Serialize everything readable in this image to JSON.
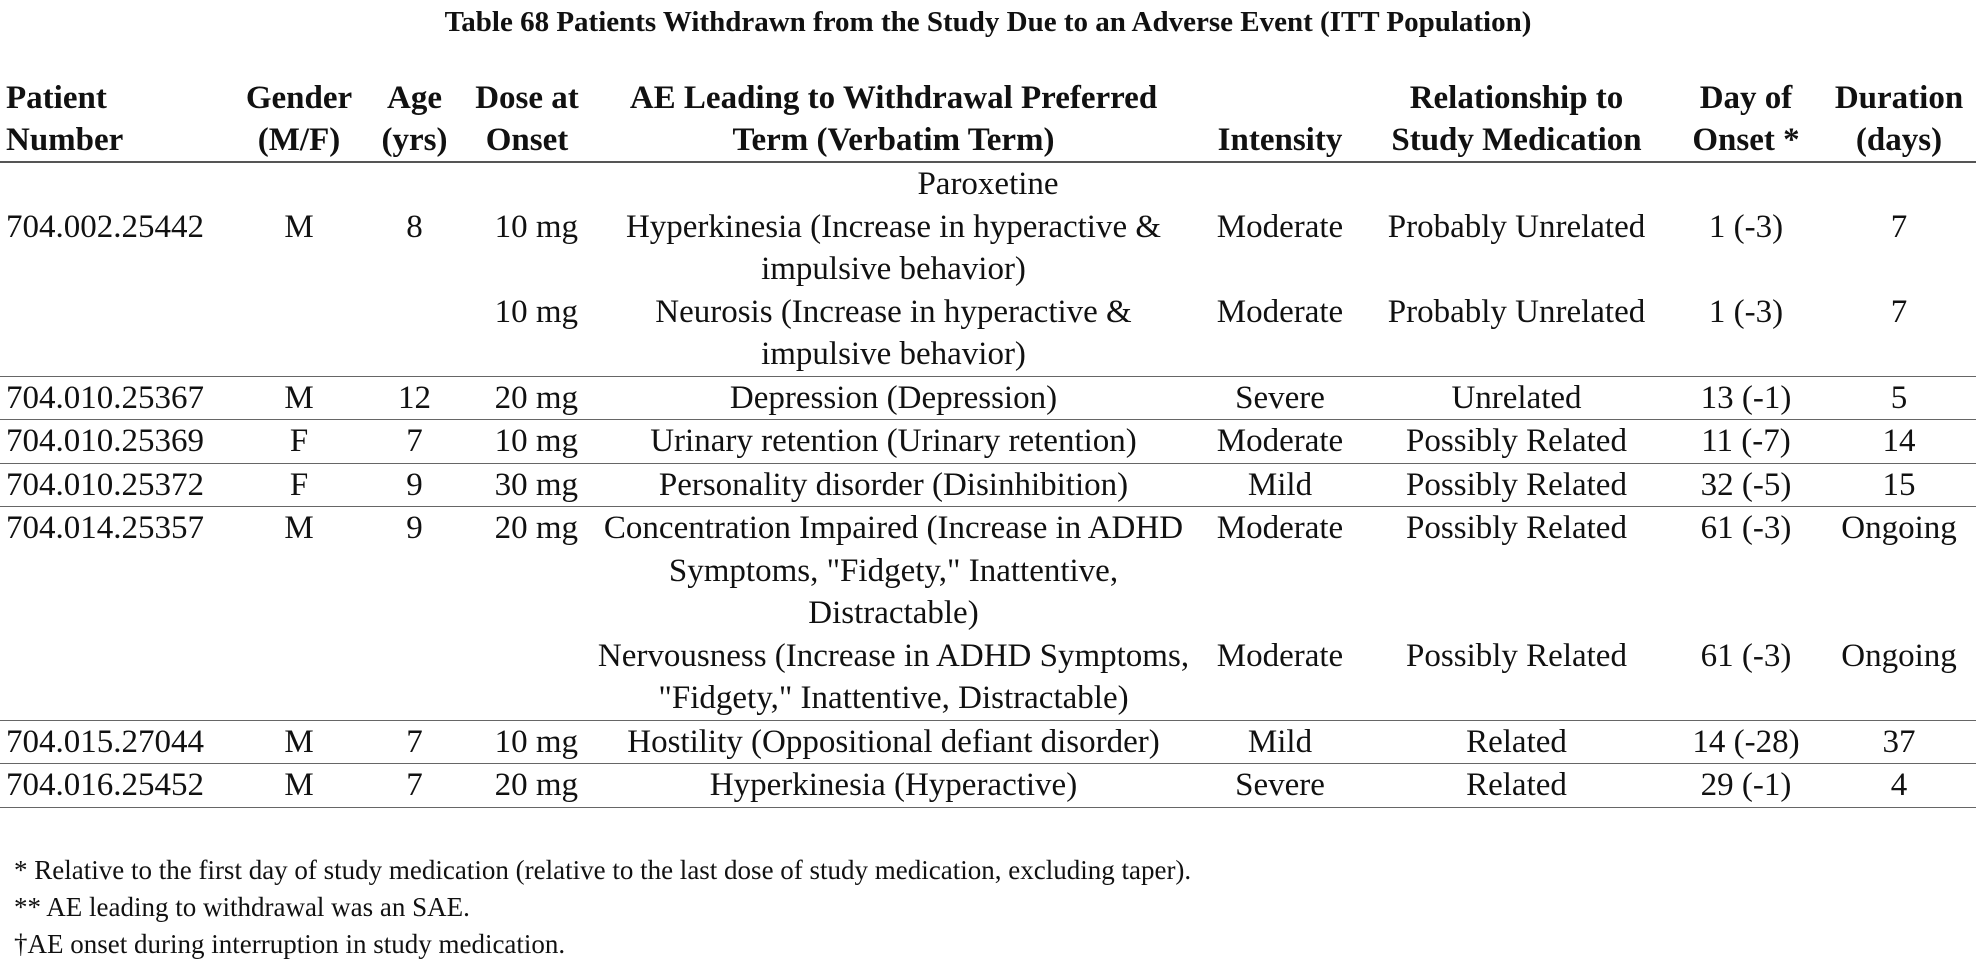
{
  "title": "Table 68  Patients Withdrawn from the Study Due to an Adverse Event (ITT Population)",
  "columns": [
    [
      "Patient",
      "Number"
    ],
    [
      "Gender",
      "(M/F)"
    ],
    [
      "Age",
      "(yrs)"
    ],
    [
      "Dose at",
      "Onset"
    ],
    [
      "AE Leading to Withdrawal Preferred",
      "Term (Verbatim Term)"
    ],
    [
      "Intensity",
      ""
    ],
    [
      "Relationship to",
      "Study Medication"
    ],
    [
      "Day of",
      "Onset *"
    ],
    [
      "Duration",
      "(days)"
    ]
  ],
  "group": "Paroxetine",
  "patients": [
    {
      "id": "704.002.25442",
      "gender": "M",
      "age": "8",
      "events": [
        {
          "dose": "10 mg",
          "term": "Hyperkinesia (Increase in hyperactive & impulsive behavior)",
          "intensity": "Moderate",
          "relationship": "Probably Unrelated",
          "onset": "1 (-3)",
          "duration": "7"
        },
        {
          "dose": "10 mg",
          "term": "Neurosis (Increase in hyperactive & impulsive behavior)",
          "intensity": "Moderate",
          "relationship": "Probably Unrelated",
          "onset": "1 (-3)",
          "duration": "7"
        }
      ]
    },
    {
      "id": "704.010.25367",
      "gender": "M",
      "age": "12",
      "events": [
        {
          "dose": "20 mg",
          "term": "Depression (Depression)",
          "intensity": "Severe",
          "relationship": "Unrelated",
          "onset": "13 (-1)",
          "duration": "5"
        }
      ]
    },
    {
      "id": "704.010.25369",
      "gender": "F",
      "age": "7",
      "events": [
        {
          "dose": "10 mg",
          "term": "Urinary retention (Urinary retention)",
          "intensity": "Moderate",
          "relationship": "Possibly Related",
          "onset": "11 (-7)",
          "duration": "14"
        }
      ]
    },
    {
      "id": "704.010.25372",
      "gender": "F",
      "age": "9",
      "events": [
        {
          "dose": "30 mg",
          "term": "Personality disorder (Disinhibition)",
          "intensity": "Mild",
          "relationship": "Possibly Related",
          "onset": "32 (-5)",
          "duration": "15"
        }
      ]
    },
    {
      "id": "704.014.25357",
      "gender": "M",
      "age": "9",
      "events": [
        {
          "dose": "20 mg",
          "term": "Concentration Impaired (Increase in ADHD Symptoms, \"Fidgety,\" Inattentive, Distractable)",
          "intensity": "Moderate",
          "relationship": "Possibly Related",
          "onset": "61 (-3)",
          "duration": "Ongoing"
        },
        {
          "dose": "",
          "term": "Nervousness (Increase in ADHD Symptoms, \"Fidgety,\" Inattentive, Distractable)",
          "intensity": "Moderate",
          "relationship": "Possibly Related",
          "onset": "61 (-3)",
          "duration": "Ongoing"
        }
      ]
    },
    {
      "id": "704.015.27044",
      "gender": "M",
      "age": "7",
      "events": [
        {
          "dose": "10 mg",
          "term": "Hostility (Oppositional defiant disorder)",
          "intensity": "Mild",
          "relationship": "Related",
          "onset": "14 (-28)",
          "duration": "37"
        }
      ]
    },
    {
      "id": "704.016.25452",
      "gender": "M",
      "age": "7",
      "events": [
        {
          "dose": "20 mg",
          "term": "Hyperkinesia (Hyperactive)",
          "intensity": "Severe",
          "relationship": "Related",
          "onset": "29 (-1)",
          "duration": "4"
        }
      ]
    }
  ],
  "footnotes": [
    "* Relative to the first day of study medication (relative to the last dose of study medication, excluding taper).",
    "** AE leading to withdrawal was an SAE.",
    "†AE onset during interruption in study medication."
  ]
}
